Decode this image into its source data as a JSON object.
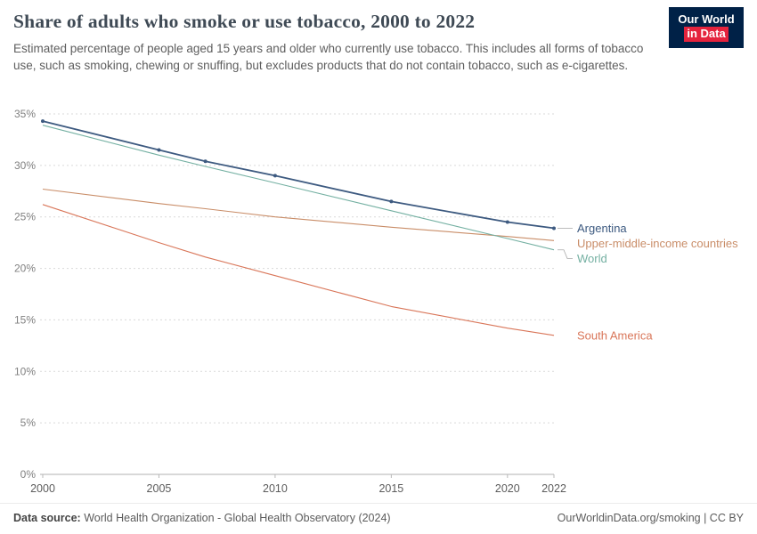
{
  "header": {
    "title": "Share of adults who smoke or use tobacco, 2000 to 2022",
    "subtitle": "Estimated percentage of people aged 15 years and older who currently use tobacco. This includes all forms of tobacco use, such as smoking, chewing or snuffing, but excludes products that do not contain tobacco, such as e-cigarettes.",
    "logo": {
      "line1": "Our World",
      "line2": "in Data",
      "bg_color": "#002147",
      "accent_color": "#e5233d"
    }
  },
  "chart_data": {
    "type": "line",
    "title": "Share of adults who smoke or use tobacco, 2000 to 2022",
    "x": [
      2000,
      2005,
      2007,
      2010,
      2015,
      2020,
      2022
    ],
    "xlim": [
      2000,
      2022
    ],
    "ylim": [
      0,
      35
    ],
    "xticks": [
      2000,
      2005,
      2010,
      2015,
      2020,
      2022
    ],
    "yticks": [
      0,
      5,
      10,
      15,
      20,
      25,
      30,
      35
    ],
    "ytick_suffix": "%",
    "grid": "dashed-horizontal",
    "grid_color": "#d9d9d9",
    "axis_label_color": "#818181",
    "legend_position": "right-of-lines",
    "series": [
      {
        "name": "Argentina",
        "color": "#3d5a80",
        "markers": true,
        "values": [
          34.3,
          31.5,
          30.4,
          29.0,
          26.5,
          24.5,
          23.9
        ]
      },
      {
        "name": "Upper-middle-income countries",
        "color": "#c98d68",
        "markers": false,
        "values": [
          27.7,
          26.3,
          25.8,
          25.0,
          24.0,
          23.1,
          22.7
        ]
      },
      {
        "name": "World",
        "color": "#74b0a2",
        "markers": false,
        "values": [
          33.9,
          31.0,
          29.9,
          28.3,
          25.6,
          22.9,
          21.8
        ]
      },
      {
        "name": "South America",
        "color": "#d97659",
        "markers": false,
        "values": [
          26.2,
          22.5,
          21.1,
          19.3,
          16.3,
          14.2,
          13.5
        ]
      }
    ]
  },
  "footer": {
    "source_label": "Data source:",
    "source_text": " World Health Organization - Global Health Observatory (2024)",
    "right_text": "OurWorldinData.org/smoking | CC BY"
  }
}
